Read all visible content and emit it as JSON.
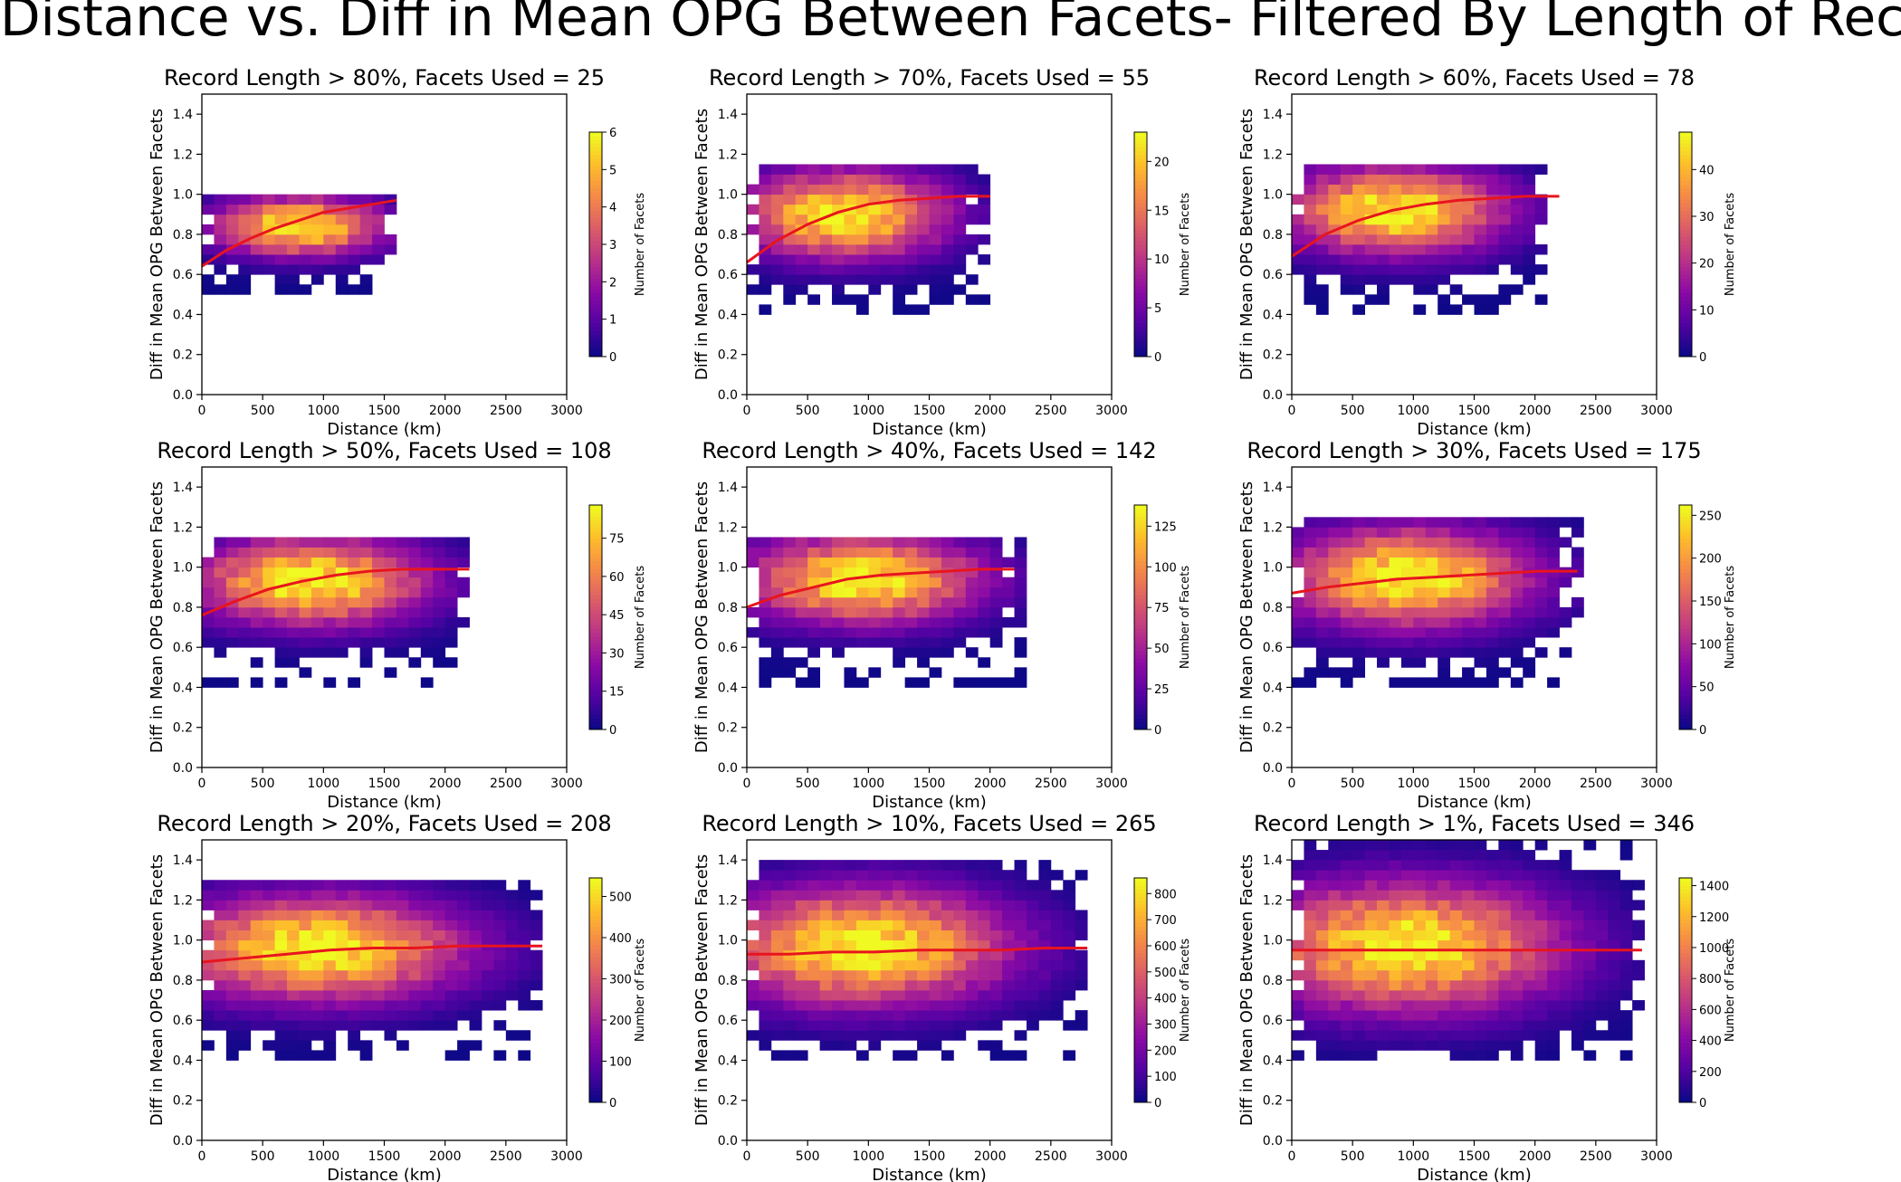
{
  "figure": {
    "title": "Distance vs. Diff in Mean OPG Between Facets- Filtered By Length of Record"
  },
  "chart_data": [
    {
      "type": "heatmap",
      "title": "Record Length > 80%, Facets Used = 25",
      "xlabel": "Distance (km)",
      "ylabel": "Diff in Mean OPG Between Facets",
      "xlim": [
        0,
        3000
      ],
      "ylim": [
        0,
        1.5
      ],
      "xticks": [
        0,
        500,
        1000,
        1500,
        2000,
        2500,
        3000
      ],
      "yticks": [
        0.0,
        0.2,
        0.4,
        0.6,
        0.8,
        1.0,
        1.2,
        1.4
      ],
      "colorbar": {
        "label": "Number of Facets",
        "max": 6,
        "ticks": [
          0,
          1,
          2,
          3,
          4,
          5,
          6
        ]
      },
      "colormap": "plasma",
      "density": {
        "x_center": 800,
        "y_center": 0.84,
        "x_extent": [
          0,
          1600
        ],
        "y_range": [
          0.5,
          1.0
        ]
      },
      "fit_line": {
        "color": "#e8141e",
        "x": [
          0,
          200,
          400,
          600,
          800,
          1000,
          1200,
          1400,
          1600
        ],
        "y": [
          0.64,
          0.72,
          0.78,
          0.83,
          0.87,
          0.91,
          0.93,
          0.95,
          0.97
        ]
      }
    },
    {
      "type": "heatmap",
      "title": "Record Length > 70%, Facets Used = 55",
      "xlabel": "Distance (km)",
      "ylabel": "Diff in Mean OPG Between Facets",
      "xlim": [
        0,
        3000
      ],
      "ylim": [
        0,
        1.5
      ],
      "xticks": [
        0,
        500,
        1000,
        1500,
        2000,
        2500,
        3000
      ],
      "yticks": [
        0.0,
        0.2,
        0.4,
        0.6,
        0.8,
        1.0,
        1.2,
        1.4
      ],
      "colorbar": {
        "label": "Number of Facets",
        "max": 23,
        "ticks": [
          0,
          5,
          10,
          15,
          20
        ]
      },
      "colormap": "plasma",
      "density": {
        "x_center": 800,
        "y_center": 0.9,
        "x_extent": [
          0,
          1950
        ],
        "y_range": [
          0.4,
          1.15
        ]
      },
      "fit_line": {
        "color": "#e8141e",
        "x": [
          0,
          250,
          500,
          750,
          1000,
          1250,
          1500,
          1750,
          2000
        ],
        "y": [
          0.66,
          0.77,
          0.85,
          0.91,
          0.95,
          0.97,
          0.98,
          0.99,
          0.99
        ]
      }
    },
    {
      "type": "heatmap",
      "title": "Record Length > 60%, Facets Used = 78",
      "xlabel": "Distance (km)",
      "ylabel": "Diff in Mean OPG Between Facets",
      "xlim": [
        0,
        3000
      ],
      "ylim": [
        0,
        1.5
      ],
      "xticks": [
        0,
        500,
        1000,
        1500,
        2000,
        2500,
        3000
      ],
      "yticks": [
        0.0,
        0.2,
        0.4,
        0.6,
        0.8,
        1.0,
        1.2,
        1.4
      ],
      "colorbar": {
        "label": "Number of Facets",
        "max": 48,
        "ticks": [
          0,
          10,
          20,
          30,
          40
        ]
      },
      "colormap": "plasma",
      "density": {
        "x_center": 850,
        "y_center": 0.92,
        "x_extent": [
          0,
          2100
        ],
        "y_range": [
          0.4,
          1.15
        ]
      },
      "fit_line": {
        "color": "#e8141e",
        "x": [
          0,
          275,
          550,
          825,
          1100,
          1375,
          1650,
          1925,
          2200
        ],
        "y": [
          0.69,
          0.8,
          0.87,
          0.92,
          0.95,
          0.97,
          0.98,
          0.99,
          0.99
        ]
      }
    },
    {
      "type": "heatmap",
      "title": "Record Length > 50%, Facets Used = 108",
      "xlabel": "Distance (km)",
      "ylabel": "Diff in Mean OPG Between Facets",
      "xlim": [
        0,
        3000
      ],
      "ylim": [
        0,
        1.5
      ],
      "xticks": [
        0,
        500,
        1000,
        1500,
        2000,
        2500,
        3000
      ],
      "yticks": [
        0.0,
        0.2,
        0.4,
        0.6,
        0.8,
        1.0,
        1.2,
        1.4
      ],
      "colorbar": {
        "label": "Number of Facets",
        "max": 88,
        "ticks": [
          0,
          15,
          30,
          45,
          60,
          75
        ]
      },
      "colormap": "plasma",
      "density": {
        "x_center": 900,
        "y_center": 0.93,
        "x_extent": [
          0,
          2200
        ],
        "y_range": [
          0.4,
          1.15
        ]
      },
      "fit_line": {
        "color": "#e8141e",
        "x": [
          0,
          275,
          550,
          825,
          1100,
          1375,
          1650,
          1925,
          2200
        ],
        "y": [
          0.76,
          0.83,
          0.89,
          0.93,
          0.96,
          0.98,
          0.99,
          0.99,
          0.99
        ]
      }
    },
    {
      "type": "heatmap",
      "title": "Record Length > 40%, Facets Used = 142",
      "xlabel": "Distance (km)",
      "ylabel": "Diff in Mean OPG Between Facets",
      "xlim": [
        0,
        3000
      ],
      "ylim": [
        0,
        1.5
      ],
      "xticks": [
        0,
        500,
        1000,
        1500,
        2000,
        2500,
        3000
      ],
      "yticks": [
        0.0,
        0.2,
        0.4,
        0.6,
        0.8,
        1.0,
        1.2,
        1.4
      ],
      "colorbar": {
        "label": "Number of Facets",
        "max": 138,
        "ticks": [
          0,
          25,
          50,
          75,
          100,
          125
        ]
      },
      "colormap": "plasma",
      "density": {
        "x_center": 950,
        "y_center": 0.94,
        "x_extent": [
          0,
          2250
        ],
        "y_range": [
          0.4,
          1.15
        ]
      },
      "fit_line": {
        "color": "#e8141e",
        "x": [
          0,
          275,
          550,
          825,
          1100,
          1375,
          1650,
          1925,
          2200
        ],
        "y": [
          0.8,
          0.86,
          0.9,
          0.94,
          0.96,
          0.97,
          0.98,
          0.99,
          0.99
        ]
      }
    },
    {
      "type": "heatmap",
      "title": "Record Length > 30%, Facets Used = 175",
      "xlabel": "Distance (km)",
      "ylabel": "Diff in Mean OPG Between Facets",
      "xlim": [
        0,
        3000
      ],
      "ylim": [
        0,
        1.5
      ],
      "xticks": [
        0,
        500,
        1000,
        1500,
        2000,
        2500,
        3000
      ],
      "yticks": [
        0.0,
        0.2,
        0.4,
        0.6,
        0.8,
        1.0,
        1.2,
        1.4
      ],
      "colorbar": {
        "label": "Number of Facets",
        "max": 262,
        "ticks": [
          0,
          50,
          100,
          150,
          200,
          250
        ]
      },
      "colormap": "plasma",
      "density": {
        "x_center": 950,
        "y_center": 0.95,
        "x_extent": [
          0,
          2350
        ],
        "y_range": [
          0.4,
          1.25
        ]
      },
      "fit_line": {
        "color": "#e8141e",
        "x": [
          0,
          290,
          580,
          870,
          1160,
          1450,
          1740,
          2030,
          2350
        ],
        "y": [
          0.87,
          0.9,
          0.92,
          0.94,
          0.95,
          0.96,
          0.97,
          0.98,
          0.98
        ]
      }
    },
    {
      "type": "heatmap",
      "title": "Record Length > 20%, Facets Used = 208",
      "xlabel": "Distance (km)",
      "ylabel": "Diff in Mean OPG Between Facets",
      "xlim": [
        0,
        3000
      ],
      "ylim": [
        0,
        1.5
      ],
      "xticks": [
        0,
        500,
        1000,
        1500,
        2000,
        2500,
        3000
      ],
      "yticks": [
        0.0,
        0.2,
        0.4,
        0.6,
        0.8,
        1.0,
        1.2,
        1.4
      ],
      "colorbar": {
        "label": "Number of Facets",
        "max": 545,
        "ticks": [
          0,
          100,
          200,
          300,
          400,
          500
        ]
      },
      "colormap": "plasma",
      "density": {
        "x_center": 950,
        "y_center": 0.96,
        "x_extent": [
          0,
          2800
        ],
        "y_range": [
          0.4,
          1.3
        ]
      },
      "fit_line": {
        "color": "#e8141e",
        "x": [
          0,
          350,
          700,
          1050,
          1400,
          1750,
          2100,
          2450,
          2800
        ],
        "y": [
          0.89,
          0.91,
          0.93,
          0.95,
          0.96,
          0.96,
          0.97,
          0.97,
          0.97
        ]
      }
    },
    {
      "type": "heatmap",
      "title": "Record Length > 10%, Facets Used = 265",
      "xlabel": "Distance (km)",
      "ylabel": "Diff in Mean OPG Between Facets",
      "xlim": [
        0,
        3000
      ],
      "ylim": [
        0,
        1.5
      ],
      "xticks": [
        0,
        500,
        1000,
        1500,
        2000,
        2500,
        3000
      ],
      "yticks": [
        0.0,
        0.2,
        0.4,
        0.6,
        0.8,
        1.0,
        1.2,
        1.4
      ],
      "colorbar": {
        "label": "Number of Facets",
        "max": 860,
        "ticks": [
          0,
          100,
          200,
          300,
          400,
          500,
          600,
          700,
          800
        ]
      },
      "colormap": "plasma",
      "density": {
        "x_center": 950,
        "y_center": 0.97,
        "x_extent": [
          0,
          2800
        ],
        "y_range": [
          0.4,
          1.4
        ]
      },
      "fit_line": {
        "color": "#e8141e",
        "x": [
          0,
          350,
          700,
          1050,
          1400,
          1750,
          2100,
          2450,
          2800
        ],
        "y": [
          0.93,
          0.93,
          0.94,
          0.94,
          0.95,
          0.95,
          0.95,
          0.96,
          0.96
        ]
      }
    },
    {
      "type": "heatmap",
      "title": "Record Length > 1%, Facets Used = 346",
      "xlabel": "Distance (km)",
      "ylabel": "Diff in Mean OPG Between Facets",
      "xlim": [
        0,
        3000
      ],
      "ylim": [
        0,
        1.5
      ],
      "xticks": [
        0,
        500,
        1000,
        1500,
        2000,
        2500,
        3000
      ],
      "yticks": [
        0.0,
        0.2,
        0.4,
        0.6,
        0.8,
        1.0,
        1.2,
        1.4
      ],
      "colorbar": {
        "label": "Number of Facets",
        "max": 1450,
        "ticks": [
          0,
          200,
          400,
          600,
          800,
          1000,
          1200,
          1400
        ]
      },
      "colormap": "plasma",
      "density": {
        "x_center": 950,
        "y_center": 0.97,
        "x_extent": [
          0,
          2900
        ],
        "y_range": [
          0.4,
          1.5
        ]
      },
      "fit_line": {
        "color": "#e8141e",
        "x": [
          0,
          360,
          720,
          1080,
          1440,
          1800,
          2160,
          2520,
          2880
        ],
        "y": [
          0.95,
          0.95,
          0.95,
          0.95,
          0.95,
          0.95,
          0.95,
          0.95,
          0.95
        ]
      }
    }
  ]
}
